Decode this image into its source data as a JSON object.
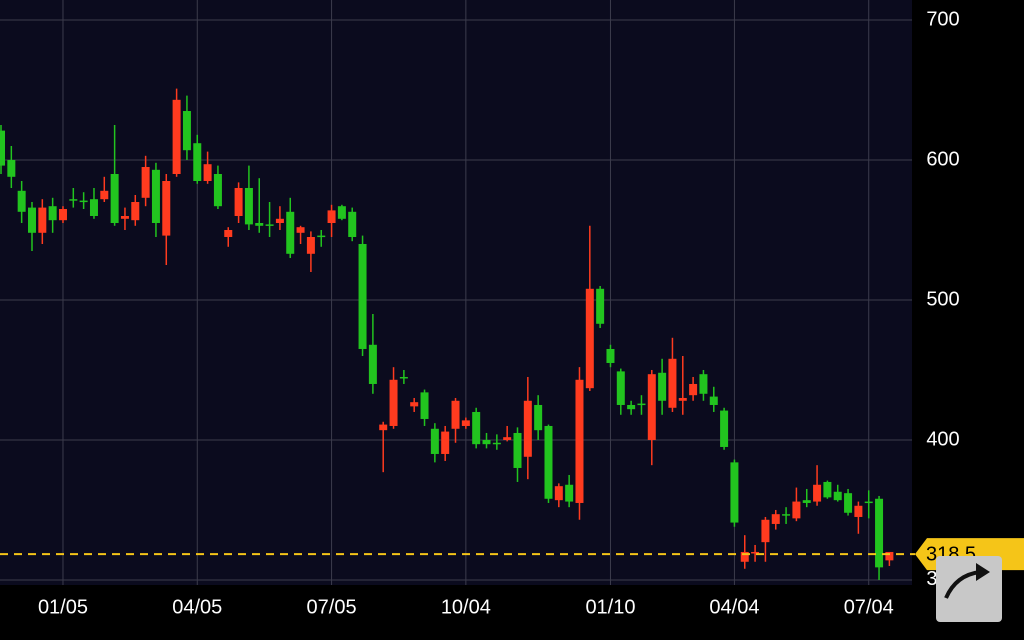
{
  "chart_data": {
    "type": "candlestick",
    "categories": [
      null,
      null,
      null,
      null,
      null,
      null,
      "01/05",
      null,
      null,
      null,
      null,
      null,
      null,
      null,
      null,
      null,
      null,
      null,
      null,
      "04/05",
      null,
      null,
      null,
      null,
      null,
      null,
      null,
      null,
      null,
      null,
      null,
      null,
      "07/05",
      null,
      null,
      null,
      null,
      null,
      null,
      null,
      null,
      null,
      null,
      null,
      null,
      "10/04",
      null,
      null,
      null,
      null,
      null,
      null,
      null,
      null,
      null,
      null,
      null,
      null,
      null,
      "01/10",
      null,
      null,
      null,
      null,
      null,
      null,
      null,
      null,
      null,
      null,
      null,
      "04/04",
      null,
      null,
      null,
      null,
      null,
      null,
      null,
      null,
      null,
      null,
      null,
      null,
      "07/04",
      null,
      null
    ],
    "open": [
      621,
      600,
      578,
      566,
      548,
      567,
      557,
      572,
      571,
      572,
      572,
      590,
      558,
      557,
      573,
      593,
      546,
      590,
      635,
      612,
      585,
      590,
      545,
      560,
      580,
      555,
      554,
      555,
      563,
      548,
      533,
      546,
      555,
      567,
      563,
      540,
      468,
      407,
      410,
      445,
      424,
      434,
      408,
      390,
      408,
      410,
      420,
      400,
      398,
      400,
      405,
      388,
      425,
      410,
      357,
      368,
      355,
      437,
      508,
      465,
      449,
      425,
      426,
      400,
      448,
      423,
      428,
      432,
      447,
      431,
      421,
      384,
      313,
      319,
      327,
      340,
      347,
      344,
      357,
      356,
      370,
      363,
      362,
      345,
      356,
      358,
      314
    ],
    "high": [
      625,
      610,
      585,
      570,
      572,
      573,
      567,
      580,
      577,
      580,
      588,
      625,
      566,
      575,
      603,
      598,
      590,
      651,
      646,
      618,
      606,
      596,
      552,
      584,
      596,
      587,
      570,
      567,
      573,
      553,
      549,
      550,
      568,
      568,
      566,
      546,
      490,
      413,
      452,
      450,
      430,
      436,
      412,
      410,
      430,
      416,
      423,
      405,
      404,
      410,
      409,
      445,
      432,
      411,
      369,
      375,
      452,
      553,
      510,
      468,
      451,
      428,
      432,
      450,
      458,
      473,
      460,
      445,
      450,
      438,
      423,
      386,
      332,
      325,
      345,
      350,
      352,
      366,
      365,
      382,
      371,
      368,
      365,
      356,
      364,
      360,
      320
    ],
    "low": [
      590,
      580,
      555,
      535,
      540,
      548,
      555,
      566,
      565,
      558,
      570,
      553,
      550,
      553,
      567,
      545,
      525,
      588,
      600,
      583,
      583,
      565,
      538,
      555,
      550,
      548,
      545,
      550,
      530,
      540,
      520,
      538,
      545,
      557,
      542,
      460,
      433,
      377,
      408,
      440,
      420,
      410,
      384,
      385,
      398,
      408,
      394,
      394,
      393,
      399,
      370,
      372,
      400,
      355,
      352,
      352,
      343,
      435,
      480,
      452,
      418,
      418,
      418,
      382,
      418,
      420,
      418,
      428,
      428,
      420,
      393,
      338,
      308,
      313,
      313,
      336,
      340,
      342,
      352,
      353,
      358,
      356,
      346,
      333,
      344,
      300,
      310
    ],
    "close": [
      596,
      588,
      563,
      548,
      566,
      557,
      565,
      571,
      570,
      560,
      578,
      555,
      560,
      570,
      595,
      555,
      585,
      643,
      607,
      585,
      597,
      567,
      550,
      580,
      554,
      553,
      553,
      558,
      533,
      552,
      545,
      545,
      564,
      558,
      545,
      465,
      440,
      411,
      443,
      444,
      427,
      415,
      390,
      406,
      428,
      414,
      397,
      397,
      397,
      402,
      380,
      428,
      407,
      358,
      367,
      356,
      443,
      508,
      483,
      455,
      425,
      422,
      425,
      447,
      428,
      458,
      430,
      440,
      433,
      425,
      395,
      341,
      320,
      320,
      343,
      347,
      346,
      356,
      355,
      368,
      359,
      357,
      348,
      353,
      355,
      309,
      320
    ],
    "up_color": "#ff3b1f",
    "down_color": "#22c41f",
    "current_price": 318.5,
    "current_price_color": "#f5c518",
    "ylim": [
      296.4,
      714.3
    ],
    "yticks": [
      300,
      400,
      500,
      600,
      700
    ],
    "grid": true
  }
}
